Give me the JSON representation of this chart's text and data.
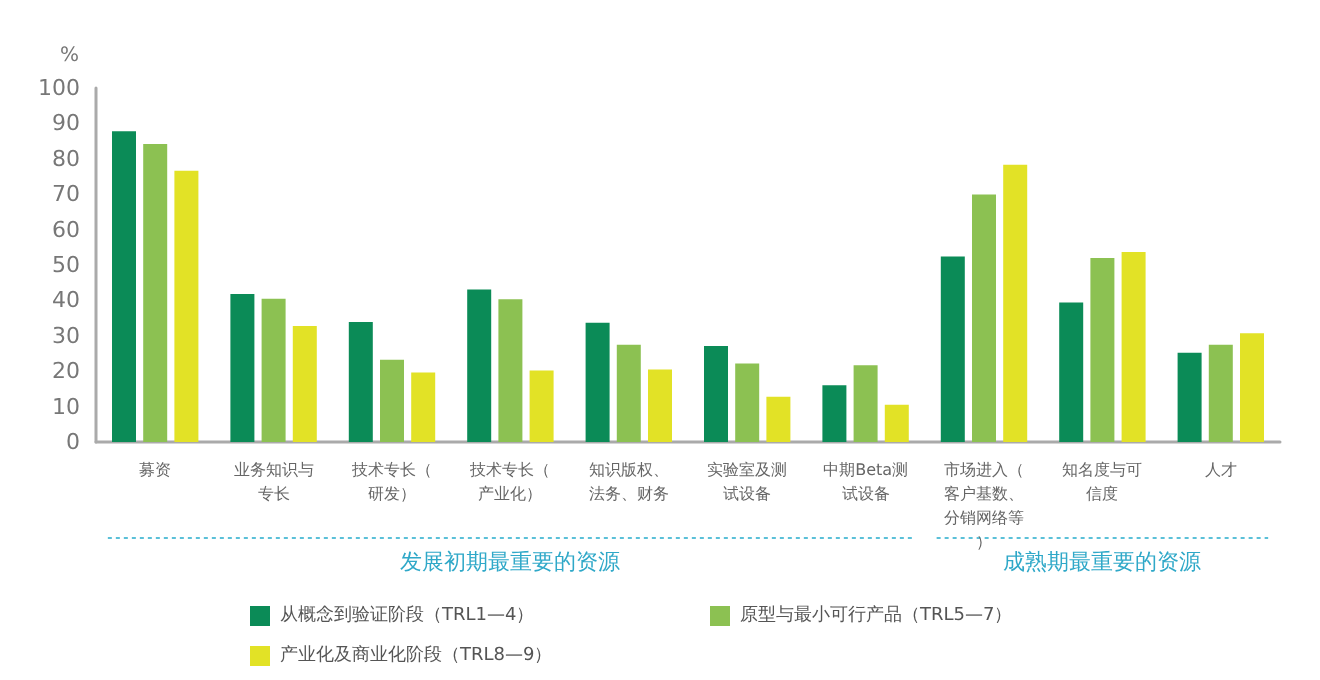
{
  "chart_data": {
    "type": "bar",
    "ylabel": "%",
    "categories": [
      "募资",
      "业务知识与专长",
      "技术专长（研发）",
      "技术专长（产业化）",
      "知识版权、法务、财务",
      "实验室及测试设备",
      "中期Beta测试设备",
      "市场进入（客户基数、分销网络等）",
      "知名度与可信度",
      "人才"
    ],
    "series": [
      {
        "name": "从概念到验证阶段（TRL1—4）",
        "color": "#0b8b57",
        "values": [
          87.8,
          41.8,
          33.9,
          43.1,
          33.7,
          27.1,
          16.0,
          52.4,
          39.4,
          25.2
        ]
      },
      {
        "name": "原型与最小可行产品（TRL5—7）",
        "color": "#8cc152",
        "values": [
          84.2,
          40.5,
          23.2,
          40.3,
          27.5,
          22.2,
          21.7,
          69.9,
          52.0,
          27.5
        ]
      },
      {
        "name": "产业化及商业化阶段（TRL8—9）",
        "color": "#e2e226",
        "values": [
          76.6,
          32.8,
          19.6,
          20.2,
          20.5,
          12.8,
          10.5,
          78.3,
          53.7,
          30.7
        ]
      }
    ],
    "annotations": [
      "发展初期最重要的资源",
      "成熟期最重要的资源"
    ],
    "ylim": [
      0,
      100
    ],
    "yticks": [
      0,
      10,
      20,
      30,
      40,
      50,
      60,
      70,
      80,
      90,
      100
    ],
    "grid": false,
    "legend": "bottom"
  }
}
